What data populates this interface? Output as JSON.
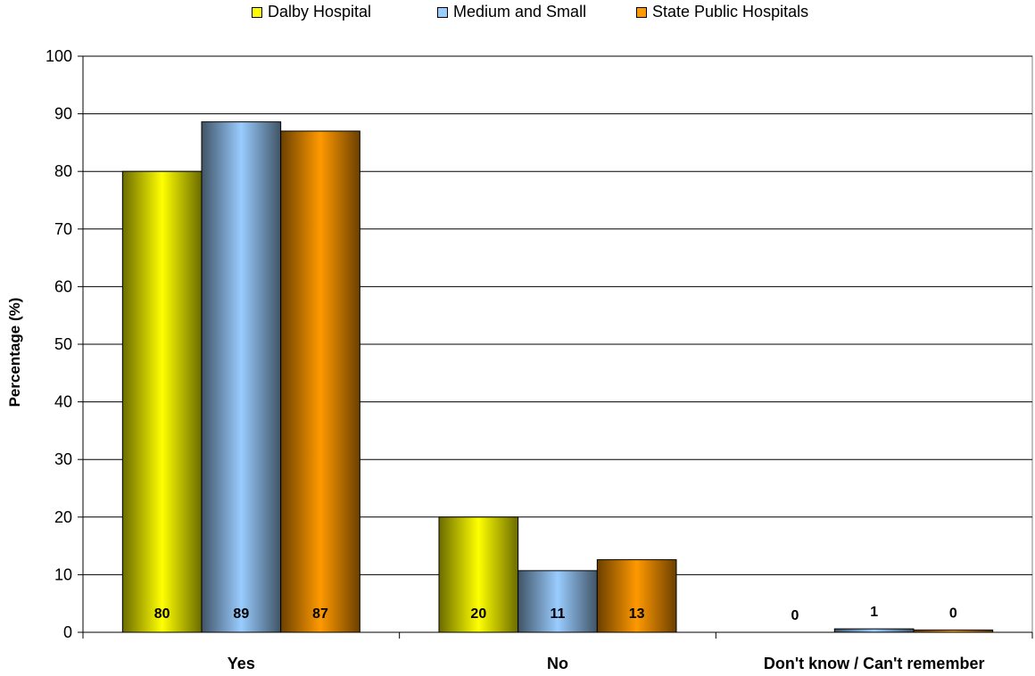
{
  "chart_data": {
    "type": "bar",
    "title": "",
    "xlabel": "",
    "ylabel": "Percentage (%)",
    "ylim": [
      0,
      100
    ],
    "yticks": [
      0,
      10,
      20,
      30,
      40,
      50,
      60,
      70,
      80,
      90,
      100
    ],
    "grid": true,
    "legend_position": "top-center",
    "categories": [
      "Yes",
      "No",
      "Don't know / Can't remember"
    ],
    "series": [
      {
        "name": "Dalby Hospital",
        "color": "#ffff00",
        "values": [
          80,
          20,
          0
        ],
        "labels": [
          "80",
          "20",
          "0"
        ]
      },
      {
        "name": "Medium and Small",
        "color": "#99ccff",
        "values": [
          88.6,
          10.7,
          0.6
        ],
        "labels": [
          "89",
          "11",
          "1"
        ]
      },
      {
        "name": "State Public Hospitals",
        "color": "#ff9900",
        "values": [
          87,
          12.6,
          0.4
        ],
        "labels": [
          "87",
          "13",
          "0"
        ]
      }
    ]
  }
}
